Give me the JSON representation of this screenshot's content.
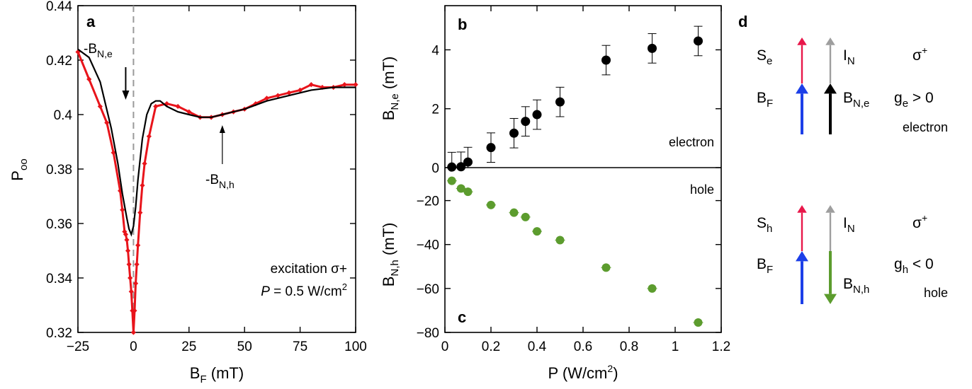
{
  "chart_data": [
    {
      "panel": "a",
      "type": "line",
      "xlabel": "B",
      "xlabel_sub": "F",
      "xlabel_unit": " (mT)",
      "ylabel": "P",
      "ylabel_sub": "oo",
      "xlim": [
        -25,
        100
      ],
      "ylim": [
        0.32,
        0.44
      ],
      "xticks": [
        -25,
        0,
        25,
        50,
        75,
        100
      ],
      "yticks": [
        0.32,
        0.34,
        0.36,
        0.38,
        0.4,
        0.42,
        0.44
      ],
      "grid": false,
      "vline_x": 0,
      "series": [
        {
          "color": "#e8141b",
          "marker": "diamond",
          "x": [
            -25,
            -20,
            -15,
            -12,
            -9,
            -6,
            -5,
            -4,
            -3.5,
            -3,
            -2.5,
            -2,
            -1.5,
            -1,
            -0.5,
            0,
            0.5,
            1,
            1.5,
            2,
            3,
            4,
            5,
            7,
            10,
            15,
            20,
            25,
            30,
            35,
            40,
            45,
            50,
            55,
            60,
            65,
            70,
            75,
            80,
            85,
            90,
            95,
            100
          ],
          "y": [
            0.423,
            0.413,
            0.403,
            0.397,
            0.386,
            0.372,
            0.365,
            0.357,
            0.356,
            0.354,
            0.35,
            0.345,
            0.34,
            0.335,
            0.328,
            0.32,
            0.328,
            0.338,
            0.345,
            0.352,
            0.364,
            0.374,
            0.382,
            0.392,
            0.403,
            0.404,
            0.403,
            0.401,
            0.399,
            0.399,
            0.4,
            0.401,
            0.402,
            0.404,
            0.406,
            0.407,
            0.408,
            0.409,
            0.411,
            0.41,
            0.41,
            0.411,
            0.411
          ]
        },
        {
          "color": "#000000",
          "marker": "none",
          "x": [
            -25,
            -20,
            -15,
            -10,
            -7,
            -5,
            -3,
            -2,
            -1,
            0,
            1,
            2,
            4,
            6,
            8,
            10,
            12,
            15,
            20,
            25,
            30,
            35,
            40,
            45,
            50,
            60,
            70,
            80,
            90,
            100
          ],
          "y": [
            0.424,
            0.421,
            0.412,
            0.395,
            0.382,
            0.371,
            0.362,
            0.358,
            0.356,
            0.359,
            0.366,
            0.376,
            0.391,
            0.4,
            0.404,
            0.405,
            0.405,
            0.403,
            0.401,
            0.4,
            0.399,
            0.399,
            0.4,
            0.401,
            0.402,
            0.405,
            0.407,
            0.409,
            0.41,
            0.41
          ]
        }
      ],
      "annotations": [
        {
          "text": "-B",
          "sub": "N,e",
          "x": -3.5,
          "y": 0.356
        },
        {
          "text": "-B",
          "sub": "N,h",
          "x": 40,
          "y": 0.4
        }
      ],
      "note_line1": "excitation σ+",
      "note_line2_italic": "P",
      "note_line2": " = 0.5 W/cm",
      "note_line2_sup": "2"
    },
    {
      "panel": "b",
      "type": "scatter",
      "ylabel": "B",
      "ylabel_sub": "N,e",
      "ylabel_unit": " (mT)",
      "xlim": [
        0,
        1.2
      ],
      "ylim": [
        0,
        5.5
      ],
      "yticks": [
        0,
        2,
        4
      ],
      "grid": false,
      "series_label": "electron",
      "series": [
        {
          "color": "#000000",
          "x": [
            0.03,
            0.07,
            0.1,
            0.2,
            0.3,
            0.35,
            0.4,
            0.5,
            0.7,
            0.9,
            1.1
          ],
          "y": [
            0.02,
            0.03,
            0.19,
            0.68,
            1.17,
            1.57,
            1.8,
            2.23,
            3.65,
            4.05,
            4.3
          ],
          "err": [
            0.5,
            0.5,
            0.5,
            0.5,
            0.5,
            0.5,
            0.5,
            0.5,
            0.5,
            0.5,
            0.5
          ]
        }
      ]
    },
    {
      "panel": "c",
      "type": "scatter",
      "ylabel": "B",
      "ylabel_sub": "N,h",
      "ylabel_unit": " (mT)",
      "xlabel": "P (W/cm",
      "xlabel_sup": "2",
      "xlabel_end": ")",
      "xlim": [
        0,
        1.2
      ],
      "ylim": [
        -80,
        -5
      ],
      "xticks": [
        0,
        0.2,
        0.4,
        0.6,
        0.8,
        1,
        1.2
      ],
      "yticks": [
        -80,
        -60,
        -40,
        -20
      ],
      "grid": false,
      "series_label": "hole",
      "series": [
        {
          "color": "#5c9c2e",
          "x": [
            0.03,
            0.07,
            0.1,
            0.2,
            0.3,
            0.35,
            0.4,
            0.5,
            0.7,
            0.9,
            1.1
          ],
          "y": [
            -11,
            -14.5,
            -16,
            -22,
            -25.5,
            -27.5,
            -34,
            -38,
            -50.5,
            -60,
            -75.5
          ],
          "err": [
            1.5,
            1.5,
            1.5,
            1.5,
            1.5,
            1.5,
            1.5,
            1.5,
            1.5,
            1.5,
            1.5
          ]
        }
      ]
    }
  ],
  "panel_d": {
    "label": "d",
    "electron": {
      "s": "S",
      "s_sub": "e",
      "i": "I",
      "i_sub": "N",
      "bf": "B",
      "bf_sub": "F",
      "bn": "B",
      "bn_sub": "N,e",
      "sigma": "σ",
      "sigma_sup": "+",
      "g": "g",
      "g_sub": "e",
      "g_rel": " > 0",
      "caption": "electron"
    },
    "hole": {
      "s": "S",
      "s_sub": "h",
      "i": "I",
      "i_sub": "N",
      "bf": "B",
      "bf_sub": "F",
      "bn": "B",
      "bn_sub": "N,h",
      "sigma": "σ",
      "sigma_sup": "+",
      "g": "g",
      "g_sub": "h",
      "g_rel": " < 0",
      "caption": "hole"
    },
    "colors": {
      "s_arrow": "#e8174a",
      "i_arrow": "#9e9e9e",
      "bf_arrow": "#1c3fe8",
      "bne_arrow": "#000000",
      "bnh_arrow": "#5c9c2e"
    }
  }
}
